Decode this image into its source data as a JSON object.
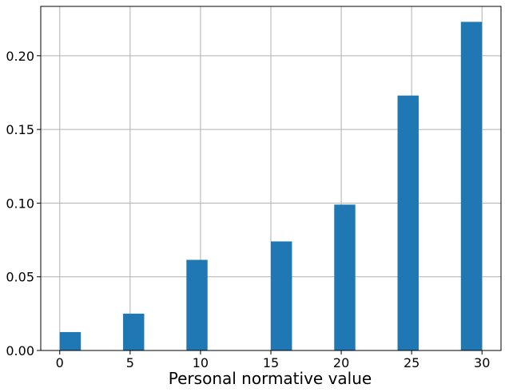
{
  "chart_data": {
    "type": "bar",
    "title": "",
    "xlabel": "Personal normative value",
    "ylabel": "",
    "x": [
      0.75,
      5.25,
      9.75,
      15.75,
      20.25,
      24.75,
      29.25
    ],
    "values": [
      0.0125,
      0.025,
      0.0615,
      0.074,
      0.099,
      0.173,
      0.223
    ],
    "bar_width": 1.5,
    "xlim": [
      -1.35,
      31.35
    ],
    "ylim": [
      0,
      0.2335
    ],
    "xticks": [
      0,
      5,
      10,
      15,
      20,
      25,
      30
    ],
    "xtick_labels": [
      "0",
      "5",
      "10",
      "15",
      "20",
      "25",
      "30"
    ],
    "yticks": [
      0.0,
      0.05,
      0.1,
      0.15,
      0.2
    ],
    "ytick_labels": [
      "0.00",
      "0.05",
      "0.10",
      "0.15",
      "0.20"
    ],
    "grid": true,
    "legend": "none",
    "colors": {
      "bar": "#1f77b4",
      "grid": "#b0b0b0",
      "axes": "#000000"
    }
  }
}
